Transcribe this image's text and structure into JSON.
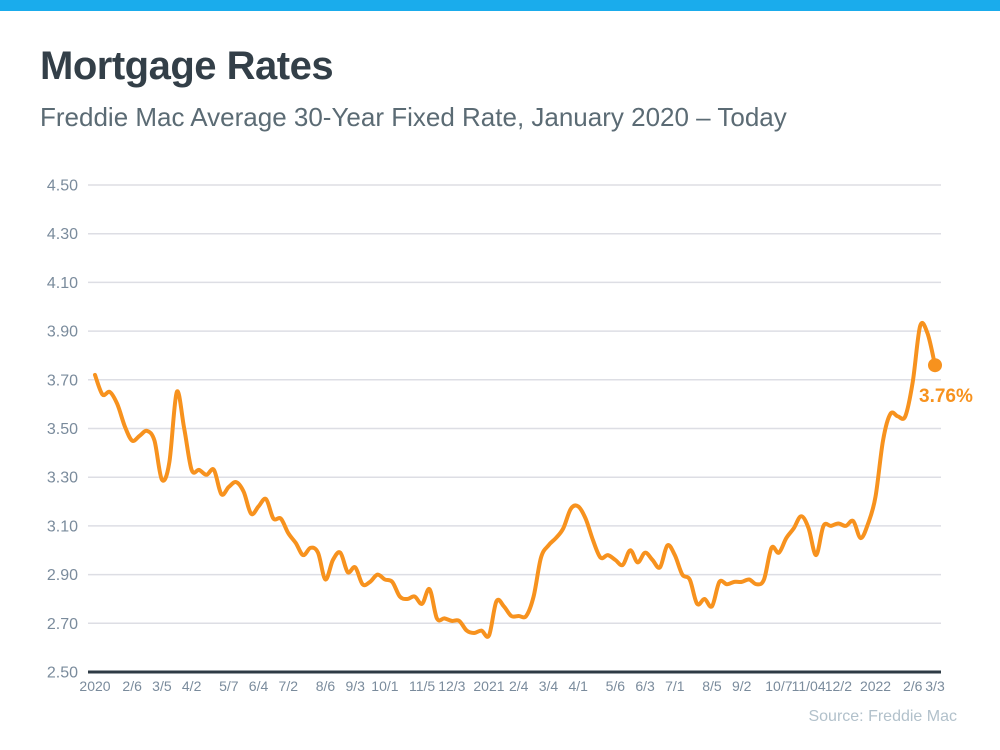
{
  "page": {
    "title": "Mortgage Rates",
    "subtitle": "Freddie Mac Average 30-Year Fixed Rate, January 2020 – Today",
    "source_note": "Source: Freddie Mac"
  },
  "colors": {
    "background": "#FFFFFF",
    "accent-bar": "#1AACEC",
    "line": "#F7921E",
    "endpoint": "#F7921E",
    "title-text": "#333F48",
    "subtitle-text": "#5B6B74",
    "tick-text": "#7A8B9C",
    "gridline": "#DDDEE4",
    "axis-line": "#2E3B45",
    "source-text": "#B2C1CB"
  },
  "chart_data": {
    "type": "line",
    "title": "Mortgage Rates",
    "subtitle": "Freddie Mac Average 30-Year Fixed Rate, January 2020 – Today",
    "unit": "percent",
    "frequency": "weekly",
    "grid": "horizontal",
    "legend": "none",
    "ylim": [
      2.5,
      4.5
    ],
    "y_ticks": [
      "4.50",
      "4.30",
      "4.10",
      "3.90",
      "3.70",
      "3.50",
      "3.30",
      "3.10",
      "2.90",
      "2.70",
      "2.50"
    ],
    "x_ticks": [
      {
        "label": "2020",
        "week": 0
      },
      {
        "label": "2/6",
        "week": 5
      },
      {
        "label": "3/5",
        "week": 9
      },
      {
        "label": "4/2",
        "week": 13
      },
      {
        "label": "5/7",
        "week": 18
      },
      {
        "label": "6/4",
        "week": 22
      },
      {
        "label": "7/2",
        "week": 26
      },
      {
        "label": "8/6",
        "week": 31
      },
      {
        "label": "9/3",
        "week": 35
      },
      {
        "label": "10/1",
        "week": 39
      },
      {
        "label": "11/5",
        "week": 44
      },
      {
        "label": "12/3",
        "week": 48
      },
      {
        "label": "2021",
        "week": 53
      },
      {
        "label": "2/4",
        "week": 57
      },
      {
        "label": "3/4",
        "week": 61
      },
      {
        "label": "4/1",
        "week": 65
      },
      {
        "label": "5/6",
        "week": 70
      },
      {
        "label": "6/3",
        "week": 74
      },
      {
        "label": "7/1",
        "week": 78
      },
      {
        "label": "8/5",
        "week": 83
      },
      {
        "label": "9/2",
        "week": 87
      },
      {
        "label": "10/7",
        "week": 92
      },
      {
        "label": "11/04",
        "week": 96
      },
      {
        "label": "12/2",
        "week": 100
      },
      {
        "label": "2022",
        "week": 105
      },
      {
        "label": "2/6",
        "week": 110
      },
      {
        "label": "3/3",
        "week": 113
      }
    ],
    "series": [
      {
        "name": "Freddie Mac Average 30-Year Fixed Rate",
        "color": "#F7921E",
        "values": [
          3.72,
          3.64,
          3.65,
          3.6,
          3.51,
          3.45,
          3.47,
          3.49,
          3.45,
          3.29,
          3.36,
          3.65,
          3.5,
          3.33,
          3.33,
          3.31,
          3.33,
          3.23,
          3.26,
          3.28,
          3.24,
          3.15,
          3.18,
          3.21,
          3.13,
          3.13,
          3.07,
          3.03,
          2.98,
          3.01,
          2.99,
          2.88,
          2.96,
          2.99,
          2.91,
          2.93,
          2.86,
          2.87,
          2.9,
          2.88,
          2.87,
          2.81,
          2.8,
          2.81,
          2.78,
          2.84,
          2.72,
          2.72,
          2.71,
          2.71,
          2.67,
          2.66,
          2.67,
          2.65,
          2.79,
          2.77,
          2.73,
          2.73,
          2.73,
          2.81,
          2.97,
          3.02,
          3.05,
          3.09,
          3.17,
          3.18,
          3.13,
          3.04,
          2.97,
          2.98,
          2.96,
          2.94,
          3.0,
          2.95,
          2.99,
          2.96,
          2.93,
          3.02,
          2.98,
          2.9,
          2.88,
          2.78,
          2.8,
          2.77,
          2.87,
          2.86,
          2.87,
          2.87,
          2.88,
          2.86,
          2.88,
          3.01,
          2.99,
          3.05,
          3.09,
          3.14,
          3.09,
          2.98,
          3.1,
          3.1,
          3.11,
          3.1,
          3.12,
          3.05,
          3.11,
          3.22,
          3.45,
          3.56,
          3.55,
          3.55,
          3.69,
          3.92,
          3.89,
          3.76
        ]
      }
    ],
    "last_value": 3.76,
    "last_point_label": "3.76%"
  }
}
